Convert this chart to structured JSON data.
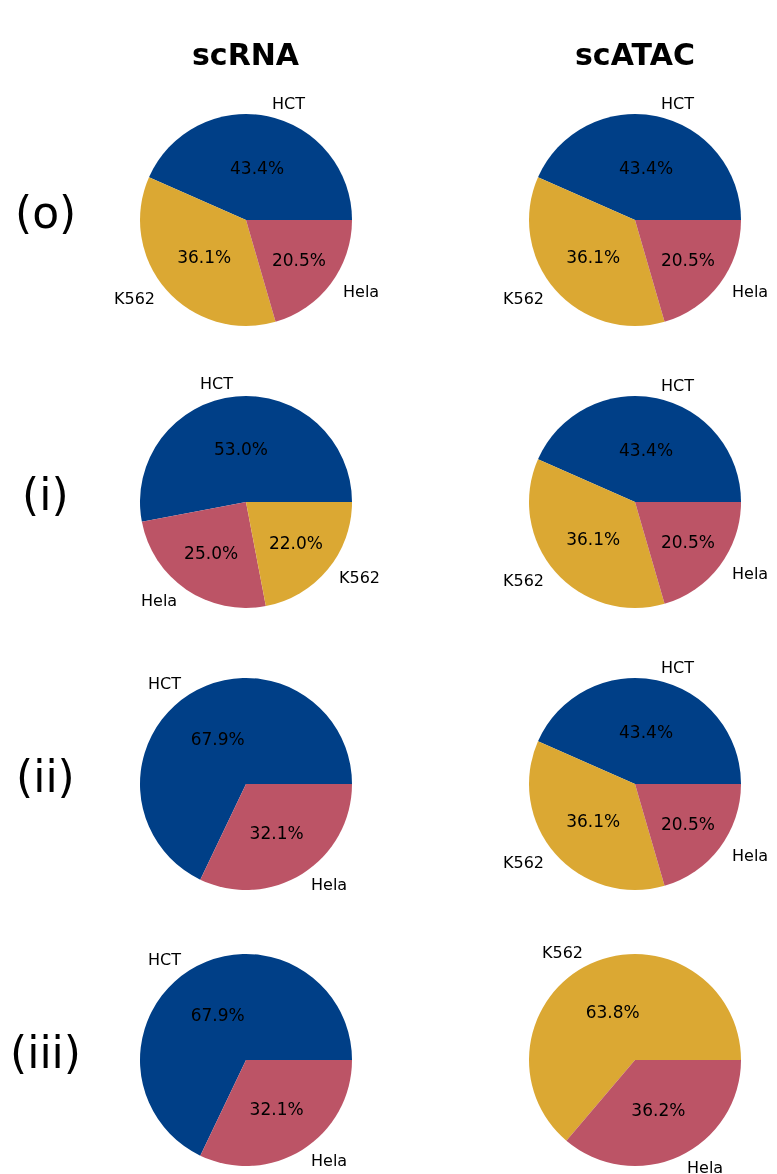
{
  "chart_data": [
    {
      "type": "pie",
      "title": "scRNA",
      "annotations": [
        "(o)"
      ],
      "categories": [
        "HCT",
        "K562",
        "Hela"
      ],
      "values": [
        43.4,
        36.1,
        20.5
      ],
      "value_labels": [
        "43.4%",
        "36.1%",
        "20.5%"
      ],
      "colors": [
        "#003f87",
        "#dba833",
        "#bc5466"
      ]
    },
    {
      "type": "pie",
      "title": "scATAC",
      "categories": [
        "HCT",
        "K562",
        "Hela"
      ],
      "values": [
        43.4,
        36.1,
        20.5
      ],
      "value_labels": [
        "43.4%",
        "36.1%",
        "20.5%"
      ],
      "colors": [
        "#003f87",
        "#dba833",
        "#bc5466"
      ]
    },
    {
      "type": "pie",
      "annotations": [
        "(i)"
      ],
      "categories": [
        "HCT",
        "Hela",
        "K562"
      ],
      "values": [
        53.0,
        25.0,
        22.0
      ],
      "value_labels": [
        "53.0%",
        "25.0%",
        "22.0%"
      ],
      "colors": [
        "#003f87",
        "#bc5466",
        "#dba833"
      ]
    },
    {
      "type": "pie",
      "categories": [
        "HCT",
        "K562",
        "Hela"
      ],
      "values": [
        43.4,
        36.1,
        20.5
      ],
      "value_labels": [
        "43.4%",
        "36.1%",
        "20.5%"
      ],
      "colors": [
        "#003f87",
        "#dba833",
        "#bc5466"
      ]
    },
    {
      "type": "pie",
      "annotations": [
        "(ii)"
      ],
      "categories": [
        "HCT",
        "Hela"
      ],
      "values": [
        67.9,
        32.1
      ],
      "value_labels": [
        "67.9%",
        "32.1%"
      ],
      "colors": [
        "#003f87",
        "#bc5466"
      ]
    },
    {
      "type": "pie",
      "categories": [
        "HCT",
        "K562",
        "Hela"
      ],
      "values": [
        43.4,
        36.1,
        20.5
      ],
      "value_labels": [
        "43.4%",
        "36.1%",
        "20.5%"
      ],
      "colors": [
        "#003f87",
        "#dba833",
        "#bc5466"
      ]
    },
    {
      "type": "pie",
      "annotations": [
        "(iii)"
      ],
      "categories": [
        "HCT",
        "Hela"
      ],
      "values": [
        67.9,
        32.1
      ],
      "value_labels": [
        "67.9%",
        "32.1%"
      ],
      "colors": [
        "#003f87",
        "#bc5466"
      ]
    },
    {
      "type": "pie",
      "categories": [
        "K562",
        "Hela"
      ],
      "values": [
        63.8,
        36.2
      ],
      "value_labels": [
        "63.8%",
        "36.2%"
      ],
      "colors": [
        "#dba833",
        "#bc5466"
      ]
    }
  ]
}
